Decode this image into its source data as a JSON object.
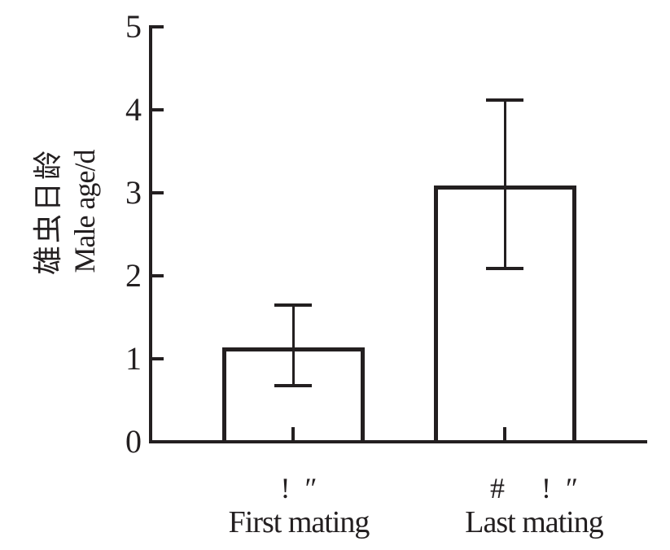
{
  "figure": {
    "background": "#ffffff",
    "ink_color": "#231f20",
    "bar_fill": "#ffffff"
  },
  "chart_data": {
    "type": "bar",
    "title": "",
    "ylabel_cn": "雄虫日龄",
    "ylabel_en": "Male age/d",
    "xlabel": "",
    "ylim": [
      0,
      5
    ],
    "yticks": [
      0,
      1,
      2,
      3,
      4,
      5
    ],
    "grid": false,
    "legend": "none",
    "categories": [
      {
        "symbols": "!  ″",
        "label": "First mating"
      },
      {
        "symbols": "#     !  ″",
        "label": "Last mating"
      }
    ],
    "series": [
      {
        "name": "Male age/d",
        "values": [
          1.14,
          3.09
        ],
        "error_lower": [
          0.68,
          2.09
        ],
        "error_upper": [
          1.65,
          4.12
        ]
      }
    ]
  }
}
